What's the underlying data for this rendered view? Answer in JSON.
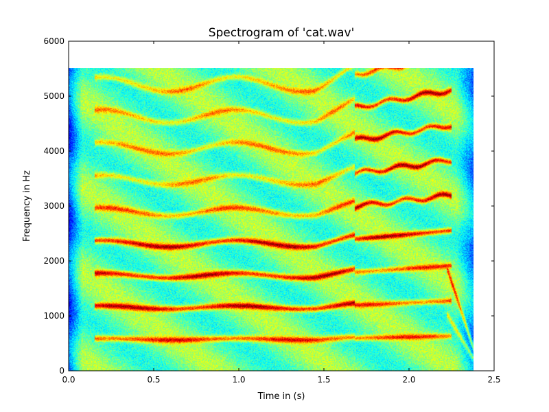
{
  "chart_data": {
    "type": "heatmap",
    "title": "Spectrogram of 'cat.wav'",
    "xlabel": "Time in (s)",
    "ylabel": "Frequency in Hz",
    "xlim": [
      0.0,
      2.5
    ],
    "ylim": [
      0,
      6000
    ],
    "x_ticks": [
      0.0,
      0.5,
      1.0,
      1.5,
      2.0,
      2.5
    ],
    "x_tick_labels": [
      "0.0",
      "0.5",
      "1.0",
      "1.5",
      "2.0",
      "2.5"
    ],
    "y_ticks": [
      0,
      1000,
      2000,
      3000,
      4000,
      5000,
      6000
    ],
    "y_tick_labels": [
      "0",
      "1000",
      "2000",
      "3000",
      "4000",
      "5000",
      "6000"
    ],
    "data_extent": {
      "time_s": [
        0.0,
        2.38
      ],
      "frequency_hz": [
        0,
        5512
      ]
    },
    "colormap": "jet",
    "grid": false,
    "harmonics": {
      "fundamental_hz": 580,
      "main_segment": {
        "time_s": [
          0.2,
          1.68
        ],
        "frequencies_hz": [
          580,
          1160,
          1740,
          2320,
          2900,
          3480,
          4060,
          4640,
          5220
        ]
      },
      "strong_band_hz": [
        1160,
        1740,
        2320
      ],
      "second_segment": {
        "time_s": [
          1.68,
          2.25
        ],
        "fundamental_hz_start": 600,
        "fundamental_hz_end": 640
      },
      "tail_segment": {
        "time_s": [
          2.22,
          2.38
        ],
        "frequency_hz_start": 1900,
        "frequency_hz_end": 400
      }
    }
  }
}
